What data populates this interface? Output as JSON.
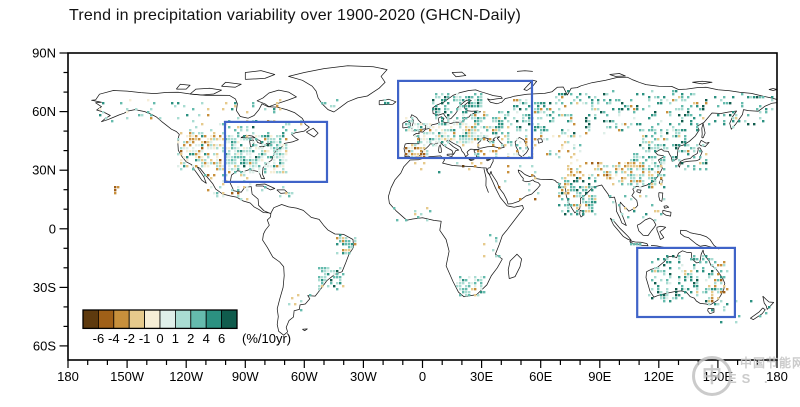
{
  "title": "Trend in precipitation variability over 1900-2020 (GHCN-Daily)",
  "watermark": {
    "logo_char": "中",
    "line1": "中国节能网",
    "line2": "ES ."
  },
  "chart_data": {
    "type": "scatter",
    "subtype": "geographic-station-map",
    "projection": "equirectangular",
    "lon_range": [
      -180,
      180
    ],
    "lat_range": [
      -67.2,
      90
    ],
    "grid": false,
    "x_tick_lons": [
      -180,
      -150,
      -120,
      -90,
      -60,
      -30,
      0,
      30,
      60,
      90,
      120,
      150,
      180
    ],
    "x_tick_labels": [
      "180",
      "150W",
      "120W",
      "90W",
      "60W",
      "30W",
      "0",
      "30E",
      "60E",
      "90E",
      "120E",
      "150E",
      "180"
    ],
    "y_tick_lats": [
      90,
      60,
      30,
      0,
      -30,
      -60
    ],
    "y_tick_labels": [
      "90N",
      "60N",
      "30N",
      "0",
      "30S",
      "60S"
    ],
    "minor_tick_step_deg": 10,
    "colorbar": {
      "unit": "(%/10yr)",
      "tick_labels": [
        "-6",
        "-4",
        "-2",
        "-1",
        "0",
        "1",
        "2",
        "4",
        "6"
      ],
      "colors": [
        "#5e3a0e",
        "#a06018",
        "#c8903c",
        "#e6ca8c",
        "#f6eed6",
        "#dfefe9",
        "#a9dcd2",
        "#65bbad",
        "#2c9181",
        "#105c4d"
      ],
      "position": "bottom-left-inside"
    },
    "highlight_color": "#3f63c8",
    "highlight_regions": [
      {
        "id": "east-north-america",
        "lon": [
          -100.3,
          -48.5
        ],
        "lat": [
          24,
          54.7
        ]
      },
      {
        "id": "europe",
        "lon": [
          -12.4,
          55.6
        ],
        "lat": [
          36.2,
          75.7
        ]
      },
      {
        "id": "australia",
        "lon": [
          109,
          158.6
        ],
        "lat": [
          -45.2,
          -9.8
        ]
      }
    ],
    "station_clusters": [
      {
        "name": "us-east",
        "lon": [
          -100,
          -70
        ],
        "lat": [
          29,
          48
        ],
        "n": 300,
        "mix": {
          "5": 25,
          "6": 32,
          "7": 18,
          "4": 10,
          "8": 6,
          "3": 4,
          "2": 3,
          "9": 2
        }
      },
      {
        "name": "us-west",
        "lon": [
          -125,
          -100
        ],
        "lat": [
          31,
          49
        ],
        "n": 160,
        "mix": {
          "4": 18,
          "5": 18,
          "6": 18,
          "3": 16,
          "2": 14,
          "7": 8,
          "1": 4,
          "8": 4
        }
      },
      {
        "name": "canada-south",
        "lon": [
          -120,
          -62
        ],
        "lat": [
          48,
          56
        ],
        "n": 55,
        "mix": {
          "6": 30,
          "7": 22,
          "5": 15,
          "8": 10,
          "3": 12,
          "2": 6,
          "9": 5
        }
      },
      {
        "name": "canada-north",
        "lon": [
          -128,
          -66
        ],
        "lat": [
          56,
          67
        ],
        "n": 28,
        "mix": {
          "6": 30,
          "7": 25,
          "8": 15,
          "3": 15,
          "2": 15
        }
      },
      {
        "name": "alaska",
        "lon": [
          -165,
          -132
        ],
        "lat": [
          56,
          66
        ],
        "n": 22,
        "mix": {
          "6": 25,
          "7": 20,
          "3": 15,
          "2": 15,
          "8": 10,
          "4": 15
        }
      },
      {
        "name": "hawaii",
        "lon": [
          -159,
          -154.5
        ],
        "lat": [
          19,
          22.3
        ],
        "n": 6,
        "mix": {
          "2": 40,
          "1": 30,
          "3": 30
        }
      },
      {
        "name": "mexico-camerica",
        "lon": [
          -111,
          -88
        ],
        "lat": [
          15,
          29
        ],
        "n": 42,
        "mix": {
          "3": 22,
          "2": 18,
          "6": 25,
          "5": 15,
          "7": 12,
          "1": 8
        }
      },
      {
        "name": "caribbean",
        "lon": [
          -84,
          -66
        ],
        "lat": [
          17.5,
          23
        ],
        "n": 8,
        "mix": {
          "6": 40,
          "7": 30,
          "3": 30
        }
      },
      {
        "name": "brazil-northeast",
        "lon": [
          -44,
          -35
        ],
        "lat": [
          -13,
          -3
        ],
        "n": 38,
        "mix": {
          "6": 30,
          "7": 28,
          "8": 16,
          "3": 13,
          "2": 13
        }
      },
      {
        "name": "brazil-southeast",
        "lon": [
          -54,
          -40
        ],
        "lat": [
          -30,
          -19
        ],
        "n": 52,
        "mix": {
          "6": 28,
          "7": 28,
          "8": 18,
          "5": 10,
          "9": 6,
          "3": 10
        }
      },
      {
        "name": "argentina",
        "lon": [
          -68,
          -57
        ],
        "lat": [
          -41,
          -31
        ],
        "n": 8,
        "mix": {
          "6": 40,
          "3": 30,
          "7": 30
        }
      },
      {
        "name": "south-africa",
        "lon": [
          17,
          31
        ],
        "lat": [
          -34,
          -24
        ],
        "n": 55,
        "mix": {
          "6": 30,
          "7": 28,
          "8": 16,
          "5": 10,
          "2": 8,
          "3": 8
        }
      },
      {
        "name": "africa-east",
        "lon": [
          30,
          40
        ],
        "lat": [
          -15,
          -1
        ],
        "n": 8,
        "mix": {
          "6": 50,
          "3": 25,
          "7": 25
        }
      },
      {
        "name": "africa-west",
        "lon": [
          -15,
          8
        ],
        "lat": [
          4,
          14
        ],
        "n": 10,
        "mix": {
          "6": 35,
          "7": 25,
          "3": 20,
          "2": 20
        }
      },
      {
        "name": "north-africa",
        "lon": [
          -8,
          32
        ],
        "lat": [
          29,
          36
        ],
        "n": 10,
        "mix": {
          "2": 35,
          "3": 25,
          "6": 20,
          "0": 10,
          "8": 10
        }
      },
      {
        "name": "greenland-coast",
        "lon": [
          -52,
          -40
        ],
        "lat": [
          60,
          68
        ],
        "n": 5,
        "mix": {
          "6": 50,
          "7": 50
        }
      },
      {
        "name": "iceland",
        "lon": [
          -22,
          -15
        ],
        "lat": [
          63.6,
          66
        ],
        "n": 4,
        "mix": {
          "6": 50,
          "8": 50
        }
      },
      {
        "name": "uk-ireland",
        "lon": [
          -9,
          1
        ],
        "lat": [
          50.5,
          58
        ],
        "n": 20,
        "mix": {
          "6": 30,
          "5": 25,
          "7": 20,
          "4": 15,
          "8": 10
        }
      },
      {
        "name": "scandinavia",
        "lon": [
          5,
          30
        ],
        "lat": [
          55.5,
          70.5
        ],
        "n": 105,
        "mix": {
          "7": 32,
          "8": 28,
          "6": 20,
          "9": 12,
          "5": 8
        }
      },
      {
        "name": "europe-central",
        "lon": [
          -4,
          24
        ],
        "lat": [
          44,
          54.5
        ],
        "n": 140,
        "mix": {
          "5": 26,
          "6": 24,
          "4": 16,
          "7": 12,
          "3": 10,
          "2": 6,
          "8": 6
        }
      },
      {
        "name": "iberia",
        "lon": [
          -9,
          1.5
        ],
        "lat": [
          36.5,
          43
        ],
        "n": 38,
        "mix": {
          "2": 28,
          "3": 26,
          "1": 14,
          "4": 12,
          "5": 10,
          "6": 10
        }
      },
      {
        "name": "europe-east",
        "lon": [
          24,
          45
        ],
        "lat": [
          45,
          60
        ],
        "n": 115,
        "mix": {
          "6": 28,
          "7": 24,
          "5": 14,
          "8": 16,
          "3": 9,
          "2": 9
        }
      },
      {
        "name": "russia-west",
        "lon": [
          45,
          60
        ],
        "lat": [
          50,
          66
        ],
        "n": 70,
        "mix": {
          "6": 28,
          "7": 30,
          "8": 20,
          "9": 10,
          "5": 6,
          "2": 6
        }
      },
      {
        "name": "siberia",
        "lon": [
          60,
          140
        ],
        "lat": [
          50,
          71
        ],
        "n": 220,
        "mix": {
          "6": 24,
          "7": 28,
          "8": 20,
          "9": 12,
          "5": 6,
          "2": 6,
          "3": 4
        }
      },
      {
        "name": "russia-fareast",
        "lon": [
          140,
          178
        ],
        "lat": [
          52,
          69
        ],
        "n": 55,
        "mix": {
          "7": 30,
          "8": 25,
          "6": 20,
          "9": 15,
          "2": 5,
          "3": 5
        }
      },
      {
        "name": "central-asia",
        "lon": [
          46,
          80
        ],
        "lat": [
          36,
          50
        ],
        "n": 55,
        "mix": {
          "5": 18,
          "6": 22,
          "3": 16,
          "2": 16,
          "7": 16,
          "4": 12
        }
      },
      {
        "name": "middle-east",
        "lon": [
          34,
          58
        ],
        "lat": [
          14,
          34
        ],
        "n": 16,
        "mix": {
          "2": 30,
          "3": 30,
          "1": 15,
          "6": 25
        }
      },
      {
        "name": "turkey-caucasus",
        "lon": [
          26,
          48
        ],
        "lat": [
          36,
          44
        ],
        "n": 26,
        "mix": {
          "6": 25,
          "3": 25,
          "2": 20,
          "7": 15,
          "5": 15
        }
      },
      {
        "name": "india",
        "lon": [
          69,
          87
        ],
        "lat": [
          8,
          27
        ],
        "n": 125,
        "mix": {
          "7": 28,
          "8": 22,
          "6": 20,
          "9": 6,
          "2": 12,
          "3": 12
        }
      },
      {
        "name": "himalaya-n-india",
        "lon": [
          73,
          96
        ],
        "lat": [
          26.5,
          34
        ],
        "n": 42,
        "mix": {
          "2": 28,
          "3": 28,
          "1": 14,
          "4": 10,
          "6": 20
        }
      },
      {
        "name": "china-southwest",
        "lon": [
          96,
          112
        ],
        "lat": [
          23,
          35
        ],
        "n": 65,
        "mix": {
          "3": 28,
          "2": 24,
          "4": 14,
          "6": 16,
          "7": 12,
          "1": 6
        }
      },
      {
        "name": "china-east",
        "lon": [
          105,
          123
        ],
        "lat": [
          21,
          41
        ],
        "n": 105,
        "mix": {
          "6": 28,
          "7": 24,
          "5": 14,
          "8": 10,
          "3": 12,
          "2": 12
        }
      },
      {
        "name": "china-northeast",
        "lon": [
          110,
          134
        ],
        "lat": [
          41,
          52
        ],
        "n": 65,
        "mix": {
          "6": 28,
          "7": 28,
          "8": 20,
          "9": 10,
          "2": 7,
          "3": 7
        }
      },
      {
        "name": "japan-korea",
        "lon": [
          126,
          144
        ],
        "lat": [
          31,
          44
        ],
        "n": 42,
        "mix": {
          "7": 28,
          "8": 24,
          "6": 20,
          "9": 16,
          "2": 6,
          "3": 6
        }
      },
      {
        "name": "se-asia-mainland",
        "lon": [
          95,
          122
        ],
        "lat": [
          5,
          18
        ],
        "n": 22,
        "mix": {
          "6": 35,
          "7": 30,
          "8": 15,
          "3": 10,
          "2": 10
        }
      },
      {
        "name": "java",
        "lon": [
          105,
          115
        ],
        "lat": [
          -8,
          -6
        ],
        "n": 6,
        "mix": {
          "6": 50,
          "7": 50
        }
      },
      {
        "name": "australia-main",
        "lon": [
          115,
          147
        ],
        "lat": [
          -36,
          -13
        ],
        "n": 145,
        "mix": {
          "7": 28,
          "8": 24,
          "6": 24,
          "9": 10,
          "5": 8,
          "3": 6
        }
      },
      {
        "name": "australia-east",
        "lon": [
          145,
          153.5
        ],
        "lat": [
          -38,
          -16
        ],
        "n": 52,
        "mix": {
          "2": 28,
          "3": 24,
          "6": 18,
          "7": 14,
          "1": 10,
          "8": 6
        }
      },
      {
        "name": "tasmania-nz",
        "lon": [
          144,
          177
        ],
        "lat": [
          -47,
          -36
        ],
        "n": 14,
        "mix": {
          "7": 40,
          "6": 30,
          "8": 30
        }
      }
    ]
  }
}
